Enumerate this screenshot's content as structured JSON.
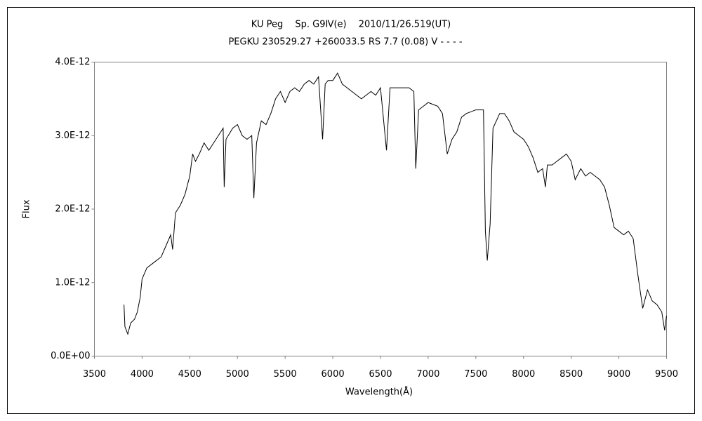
{
  "chart_data": {
    "type": "line",
    "title": "KU Peg　 Sp. G9Ⅳ(e)　 2010/11/26.519(UT)",
    "subtitle": "PEGKU 230529.27 +260033.5 RS 7.7 (0.08) V - - - -",
    "x_label": "Wavelength(Å)",
    "y_label": "Flux",
    "color": "#000000",
    "grid": false,
    "xlim": [
      3500,
      9500
    ],
    "xticks": [
      3500,
      4000,
      4500,
      5000,
      5500,
      6000,
      6500,
      7000,
      7500,
      8000,
      8500,
      9000,
      9500
    ],
    "ylim": [
      0,
      4e-12
    ],
    "yticks": [
      {
        "value": 0,
        "label": "0.0E+00"
      },
      {
        "value": 1e-12,
        "label": "1.0E-12"
      },
      {
        "value": 2e-12,
        "label": "2.0E-12"
      },
      {
        "value": 3e-12,
        "label": "3.0E-12"
      },
      {
        "value": 4e-12,
        "label": "4.0E-12"
      }
    ],
    "x": [
      3810,
      3820,
      3850,
      3880,
      3920,
      3950,
      3980,
      4000,
      4050,
      4100,
      4150,
      4200,
      4250,
      4300,
      4320,
      4350,
      4400,
      4450,
      4500,
      4530,
      4560,
      4600,
      4650,
      4700,
      4750,
      4800,
      4850,
      4861,
      4880,
      4950,
      5000,
      5050,
      5100,
      5150,
      5172,
      5200,
      5250,
      5300,
      5350,
      5400,
      5450,
      5500,
      5550,
      5600,
      5650,
      5700,
      5750,
      5800,
      5850,
      5893,
      5920,
      5950,
      6000,
      6050,
      6100,
      6150,
      6200,
      6250,
      6300,
      6350,
      6400,
      6450,
      6500,
      6563,
      6600,
      6700,
      6800,
      6850,
      6870,
      6900,
      6950,
      7000,
      7100,
      7150,
      7200,
      7250,
      7300,
      7350,
      7400,
      7500,
      7580,
      7600,
      7620,
      7650,
      7680,
      7750,
      7800,
      7850,
      7900,
      7950,
      8000,
      8050,
      8100,
      8150,
      8200,
      8230,
      8250,
      8300,
      8350,
      8400,
      8450,
      8500,
      8542,
      8600,
      8650,
      8700,
      8750,
      8800,
      8850,
      8900,
      8950,
      9000,
      9050,
      9100,
      9150,
      9200,
      9250,
      9300,
      9350,
      9400,
      9450,
      9480,
      9500
    ],
    "values": [
      7e-13,
      4e-13,
      3e-13,
      4.5e-13,
      5e-13,
      6e-13,
      8e-13,
      1.05e-12,
      1.2e-12,
      1.25e-12,
      1.3e-12,
      1.35e-12,
      1.5e-12,
      1.65e-12,
      1.45e-12,
      1.95e-12,
      2.05e-12,
      2.2e-12,
      2.45e-12,
      2.75e-12,
      2.65e-12,
      2.75e-12,
      2.9e-12,
      2.8e-12,
      2.9e-12,
      3e-12,
      3.1e-12,
      2.3e-12,
      2.95e-12,
      3.1e-12,
      3.15e-12,
      3e-12,
      2.95e-12,
      3e-12,
      2.15e-12,
      2.9e-12,
      3.2e-12,
      3.15e-12,
      3.3e-12,
      3.5e-12,
      3.6e-12,
      3.45e-12,
      3.6e-12,
      3.65e-12,
      3.6e-12,
      3.7e-12,
      3.75e-12,
      3.7e-12,
      3.8e-12,
      2.95e-12,
      3.7e-12,
      3.75e-12,
      3.75e-12,
      3.85e-12,
      3.7e-12,
      3.65e-12,
      3.6e-12,
      3.55e-12,
      3.5e-12,
      3.55e-12,
      3.6e-12,
      3.55e-12,
      3.65e-12,
      2.8e-12,
      3.65e-12,
      3.65e-12,
      3.65e-12,
      3.6e-12,
      2.55e-12,
      3.35e-12,
      3.4e-12,
      3.45e-12,
      3.4e-12,
      3.3e-12,
      2.75e-12,
      2.95e-12,
      3.05e-12,
      3.25e-12,
      3.3e-12,
      3.35e-12,
      3.35e-12,
      1.7e-12,
      1.3e-12,
      1.8e-12,
      3.1e-12,
      3.3e-12,
      3.3e-12,
      3.2e-12,
      3.05e-12,
      3e-12,
      2.95e-12,
      2.85e-12,
      2.7e-12,
      2.5e-12,
      2.55e-12,
      2.3e-12,
      2.6e-12,
      2.6e-12,
      2.65e-12,
      2.7e-12,
      2.75e-12,
      2.65e-12,
      2.4e-12,
      2.55e-12,
      2.45e-12,
      2.5e-12,
      2.45e-12,
      2.4e-12,
      2.3e-12,
      2.05e-12,
      1.75e-12,
      1.7e-12,
      1.65e-12,
      1.7e-12,
      1.6e-12,
      1.1e-12,
      6.5e-13,
      9e-13,
      7.5e-13,
      7e-13,
      6e-13,
      3.5e-13,
      5.5e-13
    ]
  }
}
